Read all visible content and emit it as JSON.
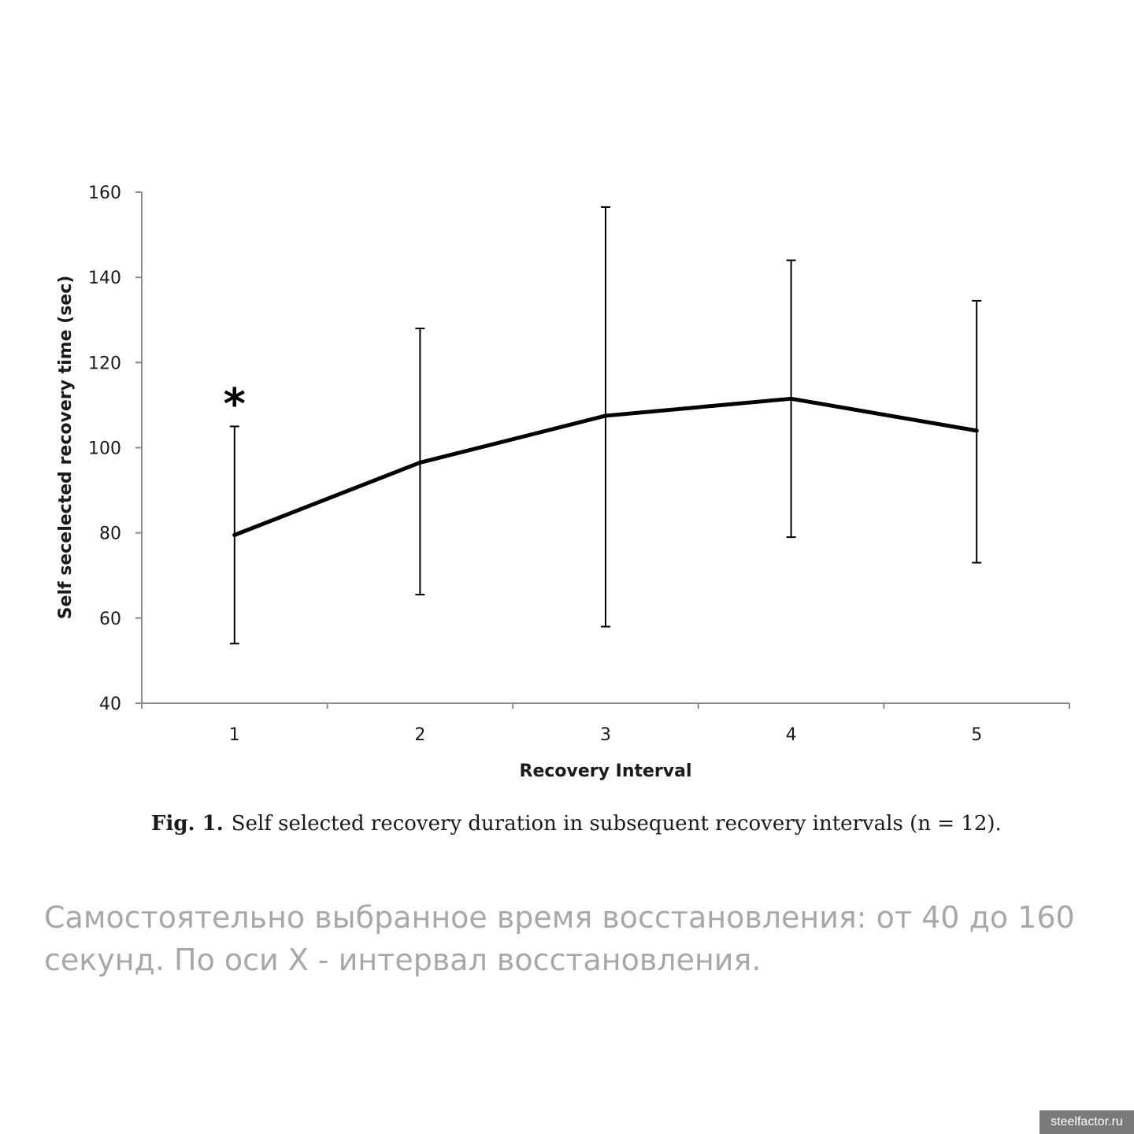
{
  "chart_data": {
    "type": "line",
    "xlabel": "Recovery Interval",
    "ylabel": "Self secelected recovery time (sec)",
    "categories": [
      "1",
      "2",
      "3",
      "4",
      "5"
    ],
    "x": [
      1,
      2,
      3,
      4,
      5
    ],
    "values": [
      79.5,
      96.5,
      107.5,
      111.5,
      104
    ],
    "error_bars": {
      "upper": [
        105,
        128,
        156.5,
        144,
        134.5
      ],
      "lower": [
        54,
        65.5,
        58,
        79,
        73
      ]
    },
    "ylim": [
      40,
      160
    ],
    "yticks": [
      "40",
      "60",
      "80",
      "100",
      "120",
      "140",
      "160"
    ],
    "annotations": [
      {
        "category": "1",
        "text": "*"
      }
    ],
    "grid": false,
    "line_color": "#000000"
  },
  "caption": {
    "label": "Fig. 1.",
    "text": "Self selected recovery duration in subsequent recovery intervals (n = 12)."
  },
  "note": "Самостоятельно выбранное время восстановления: от 40 до 160 секунд. По оси X - интервал восстановления.",
  "watermark": "steelfactor.ru"
}
